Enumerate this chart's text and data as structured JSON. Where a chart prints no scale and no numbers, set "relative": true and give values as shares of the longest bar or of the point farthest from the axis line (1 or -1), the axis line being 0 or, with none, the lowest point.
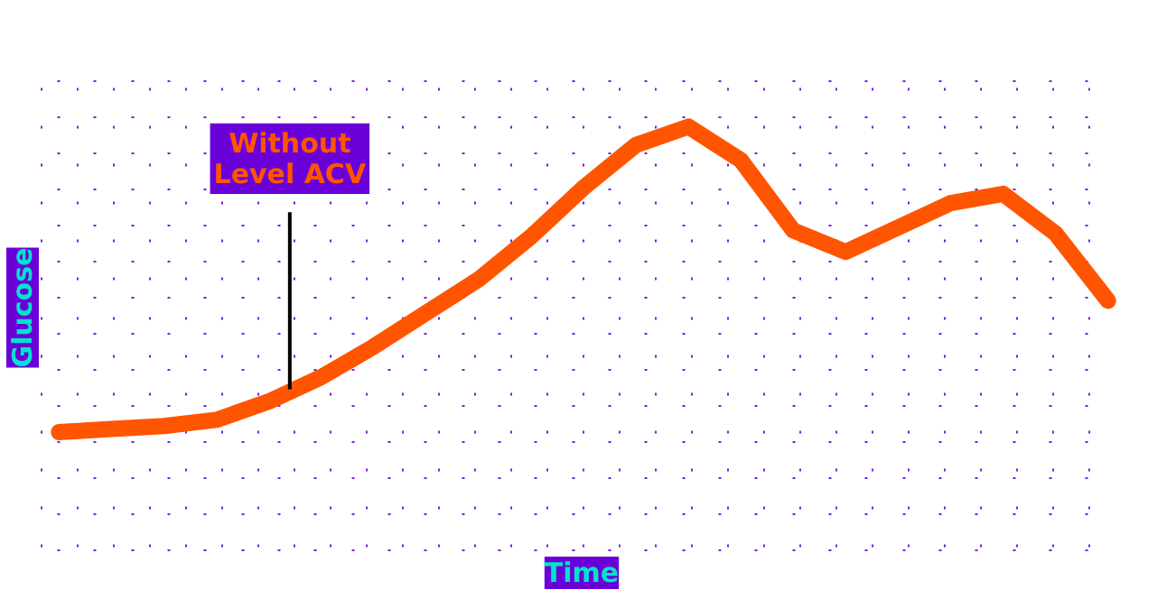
{
  "chart_data": {
    "type": "line",
    "relative": true,
    "xlabel": "Time",
    "ylabel": "Glucose",
    "grid": true,
    "line_style": "solid",
    "marker": "none",
    "categories": [
      null,
      null,
      null,
      null,
      null,
      null,
      null,
      null,
      null,
      null,
      null,
      null,
      null,
      null,
      null,
      null,
      null,
      null,
      null,
      null,
      null
    ],
    "series": [
      {
        "color": "#ff5500",
        "values": [
          0,
          0.01,
          0.02,
          0.04,
          0.1,
          0.18,
          0.28,
          0.39,
          0.5,
          0.64,
          0.8,
          0.94,
          1,
          0.89,
          0.66,
          0.59,
          0.67,
          0.75,
          0.78,
          0.65,
          0.43
        ]
      }
    ],
    "annotations": [
      "Without\nLevel ACV"
    ]
  }
}
